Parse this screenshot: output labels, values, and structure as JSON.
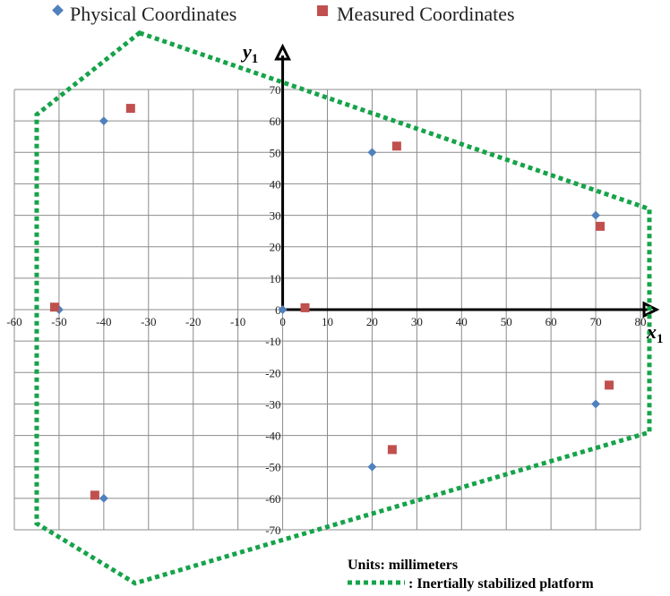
{
  "chart_data": {
    "type": "scatter",
    "title": "",
    "xlabel": "x",
    "xlabel_sub": "1",
    "ylabel": "y",
    "ylabel_sub": "1",
    "xlim": [
      -60,
      80
    ],
    "ylim": [
      -70,
      70
    ],
    "x_ticks": [
      -60,
      -50,
      -40,
      -30,
      -20,
      -10,
      0,
      10,
      20,
      30,
      40,
      50,
      60,
      70,
      80
    ],
    "y_ticks": [
      -70,
      -60,
      -50,
      -40,
      -30,
      -20,
      -10,
      0,
      10,
      20,
      30,
      40,
      50,
      60,
      70
    ],
    "grid": true,
    "legend_position": "top",
    "series": [
      {
        "name": "Physical Coordinates",
        "marker": "diamond",
        "color": "#4F81BD",
        "points": [
          {
            "x": -40,
            "y": 60
          },
          {
            "x": 20,
            "y": 50
          },
          {
            "x": 70,
            "y": 30
          },
          {
            "x": -50,
            "y": 0
          },
          {
            "x": 0,
            "y": 0
          },
          {
            "x": 70,
            "y": -30
          },
          {
            "x": 20,
            "y": -50
          },
          {
            "x": -40,
            "y": -60
          }
        ]
      },
      {
        "name": "Measured Coordinates",
        "marker": "square",
        "color": "#C0504D",
        "points": [
          {
            "x": -34,
            "y": 64
          },
          {
            "x": 25.5,
            "y": 52
          },
          {
            "x": 71,
            "y": 26.5
          },
          {
            "x": -51,
            "y": 0.8
          },
          {
            "x": 5,
            "y": 0.6
          },
          {
            "x": 73,
            "y": -24
          },
          {
            "x": 24.5,
            "y": -44.5
          },
          {
            "x": -42,
            "y": -59
          }
        ]
      }
    ],
    "platform_outline": {
      "color": "#16A34A",
      "style": "dotted",
      "vertices": [
        {
          "x": -32,
          "y": 88
        },
        {
          "x": 82,
          "y": 32
        },
        {
          "x": 82,
          "y": -39
        },
        {
          "x": -33,
          "y": -87
        },
        {
          "x": -55,
          "y": -68
        },
        {
          "x": -55,
          "y": 62
        }
      ]
    },
    "annotations": {
      "units": "Units: millimeters",
      "platform_label": ": Inertially stabilized platform"
    }
  }
}
